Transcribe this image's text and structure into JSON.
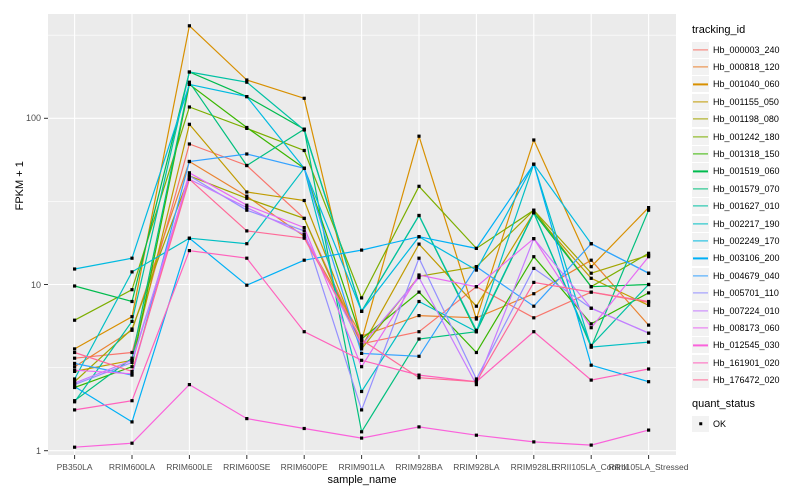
{
  "figure": {
    "y_axis_title": "FPKM + 1",
    "x_axis_title": "sample_name",
    "legend": {
      "tracking_title": "tracking_id",
      "quant_title": "quant_status",
      "quant_item_label": "OK"
    },
    "colors": {
      "panel_background": "#EBEBEB",
      "gridline": "#FFFFFF",
      "tick_text": "#4D4D4D",
      "point_marker": "#000000",
      "legend_key_background": "#F2F2F2"
    }
  },
  "chart_data": {
    "type": "line",
    "title": "",
    "xlabel": "sample_name",
    "ylabel": "FPKM + 1",
    "y_scale": "log10",
    "y_ticks": [
      1,
      10,
      100
    ],
    "y_minor_ticks": [
      3.162,
      31.62,
      316.2
    ],
    "ylim": [
      0.94,
      420
    ],
    "grid": true,
    "legend_position": "right",
    "point_marker": {
      "shape": "square",
      "color": "#000000",
      "label": "OK"
    },
    "x": [
      "PB350LA",
      "RRIM600LA",
      "RRIM600LE",
      "RRIM600SE",
      "RRIM600PE",
      "RRIM901LA",
      "RRIM928BA",
      "RRIM928LA",
      "RRIM928LE",
      "RRII105LA_Control",
      "RRII105LA_Stressed"
    ],
    "series": [
      {
        "name": "Hb_000003_240",
        "color": "#F8766D",
        "values": [
          3.6,
          3.9,
          70,
          52,
          25,
          4.4,
          5.2,
          9.7,
          6.3,
          9.0,
          7.8
        ]
      },
      {
        "name": "Hb_000818_120",
        "color": "#EA8331",
        "values": [
          3.2,
          5.3,
          55,
          34,
          19.5,
          4.9,
          6.5,
          6.3,
          8.8,
          14.0,
          5.7
        ]
      },
      {
        "name": "Hb_001040_060",
        "color": "#D89000",
        "values": [
          4.1,
          6.4,
          360,
          170,
          132,
          4.6,
          78,
          6.2,
          74,
          12.8,
          29
        ]
      },
      {
        "name": "Hb_001155_050",
        "color": "#C09B00",
        "values": [
          3.0,
          3.5,
          92,
          36,
          32,
          4.2,
          17.5,
          7.4,
          27,
          10.9,
          7.5
        ]
      },
      {
        "name": "Hb_001198_080",
        "color": "#A3A500",
        "values": [
          2.6,
          5.4,
          45,
          33,
          25,
          4.1,
          11.2,
          12.8,
          28,
          11.7,
          15.0
        ]
      },
      {
        "name": "Hb_001242_180",
        "color": "#7CAE00",
        "values": [
          6.1,
          9.3,
          117,
          87,
          64,
          8.3,
          39,
          16.5,
          28,
          9.7,
          15.4
        ]
      },
      {
        "name": "Hb_001318_150",
        "color": "#39B600",
        "values": [
          2.4,
          3.2,
          160,
          88,
          50,
          4.7,
          9.0,
          3.9,
          14.7,
          5.8,
          8.9
        ]
      },
      {
        "name": "Hb_001519_060",
        "color": "#00BB4E",
        "values": [
          9.8,
          7.9,
          190,
          135,
          86,
          6.9,
          26,
          5.2,
          27,
          9.7,
          10.0
        ]
      },
      {
        "name": "Hb_001579_070",
        "color": "#00BF7D",
        "values": [
          2.0,
          3.6,
          165,
          52,
          86,
          1.3,
          4.7,
          5.2,
          27,
          4.2,
          28
        ]
      },
      {
        "name": "Hb_001627_010",
        "color": "#00C1A3",
        "values": [
          1.97,
          6.0,
          190,
          165,
          85,
          6.9,
          26,
          5.3,
          27,
          4.3,
          10.0
        ]
      },
      {
        "name": "Hb_002217_190",
        "color": "#00BFC4",
        "values": [
          2.7,
          11.9,
          19,
          17.6,
          50,
          2.27,
          7.9,
          5.2,
          53,
          4.2,
          4.5
        ]
      },
      {
        "name": "Hb_002249_170",
        "color": "#00BAE0",
        "values": [
          12.4,
          14.4,
          160,
          135,
          50,
          6.9,
          19.4,
          12.2,
          53,
          17.6,
          11.7
        ]
      },
      {
        "name": "Hb_003106_200",
        "color": "#00B0F6",
        "values": [
          2.43,
          1.49,
          19,
          9.9,
          14.0,
          16.1,
          19.4,
          16.5,
          53,
          3.27,
          2.6
        ]
      },
      {
        "name": "Hb_004679_040",
        "color": "#35A2FF",
        "values": [
          3.35,
          2.85,
          55,
          61,
          50,
          3.85,
          3.7,
          12.8,
          7.4,
          17.6,
          11.7
        ]
      },
      {
        "name": "Hb_005701_110",
        "color": "#9590FF",
        "values": [
          2.5,
          3.4,
          45,
          28,
          21,
          1.76,
          14.4,
          2.7,
          12.5,
          7.2,
          5.1
        ]
      },
      {
        "name": "Hb_007224_010",
        "color": "#C77CFF",
        "values": [
          2.55,
          3.5,
          43,
          29,
          20,
          4.3,
          11.0,
          2.5,
          18.9,
          7.2,
          5.1
        ]
      },
      {
        "name": "Hb_008173_060",
        "color": "#E76BF3",
        "values": [
          3.05,
          2.9,
          47,
          30,
          22,
          3.2,
          11.4,
          9.7,
          18.9,
          5.5,
          14.7
        ]
      },
      {
        "name": "Hb_012545_030",
        "color": "#FA62DB",
        "values": [
          1.05,
          1.11,
          2.5,
          1.56,
          1.36,
          1.19,
          1.39,
          1.24,
          1.13,
          1.08,
          1.33
        ]
      },
      {
        "name": "Hb_161901_020",
        "color": "#FF62BC",
        "values": [
          1.76,
          2.0,
          16,
          14.4,
          5.2,
          3.5,
          2.85,
          2.6,
          5.2,
          2.66,
          3.1
        ]
      },
      {
        "name": "Hb_176472_020",
        "color": "#FF6A98",
        "values": [
          3.9,
          3.0,
          43,
          21,
          19,
          4.65,
          2.75,
          2.6,
          10.3,
          9.0,
          7.9
        ]
      }
    ]
  }
}
